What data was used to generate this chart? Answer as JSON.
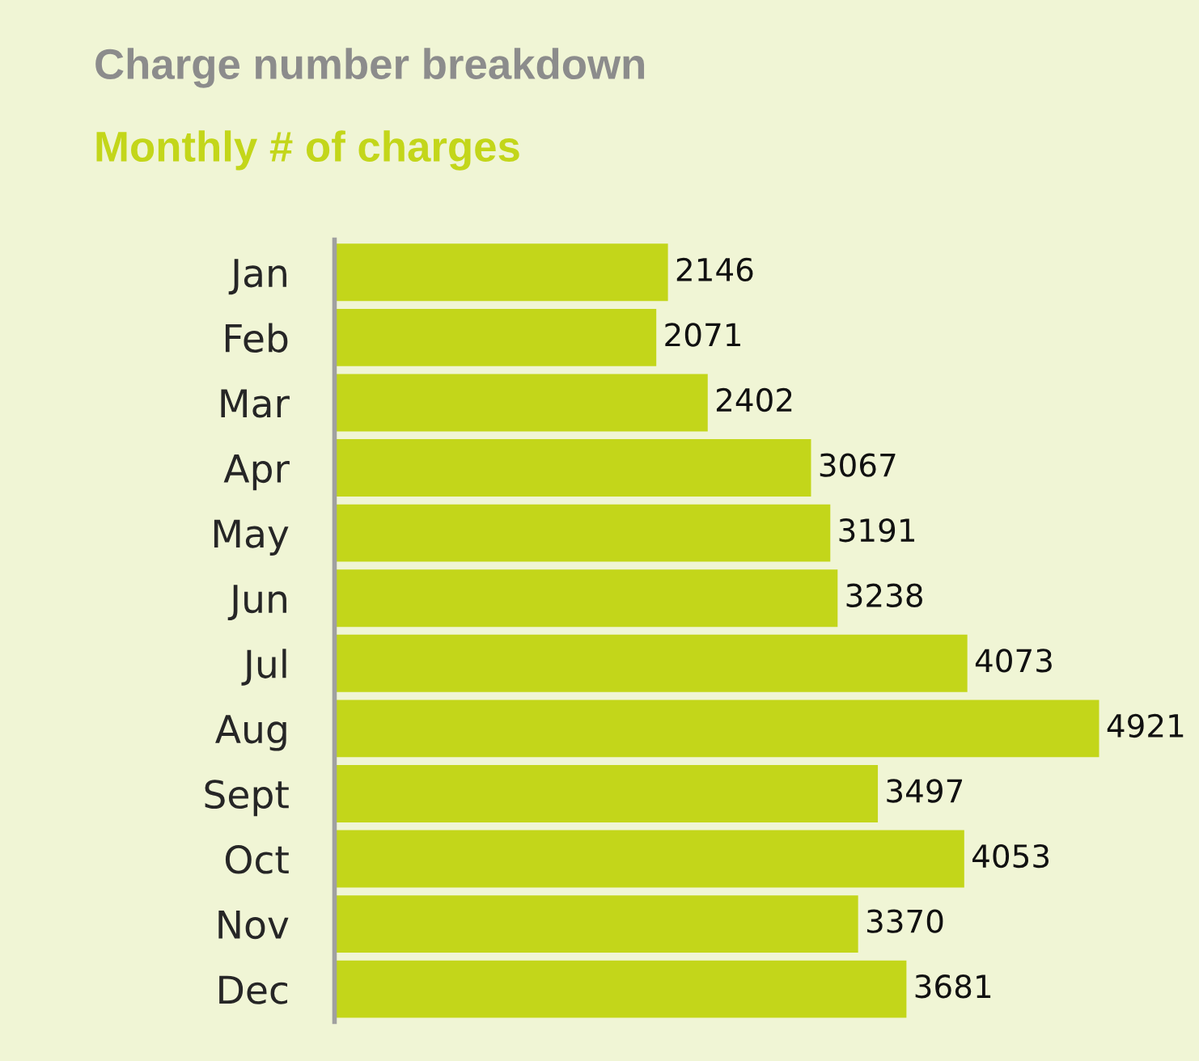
{
  "chart_data": {
    "type": "bar",
    "orientation": "horizontal",
    "title": "Charge number breakdown",
    "subtitle": "Monthly # of charges",
    "categories": [
      "Jan",
      "Feb",
      "Mar",
      "Apr",
      "May",
      "Jun",
      "Jul",
      "Aug",
      "Sept",
      "Oct",
      "Nov",
      "Dec"
    ],
    "values": [
      2146,
      2071,
      2402,
      3067,
      3191,
      3238,
      4073,
      4921,
      3497,
      4053,
      3370,
      3681
    ],
    "color": "#c3d61a",
    "data_labels": true
  }
}
